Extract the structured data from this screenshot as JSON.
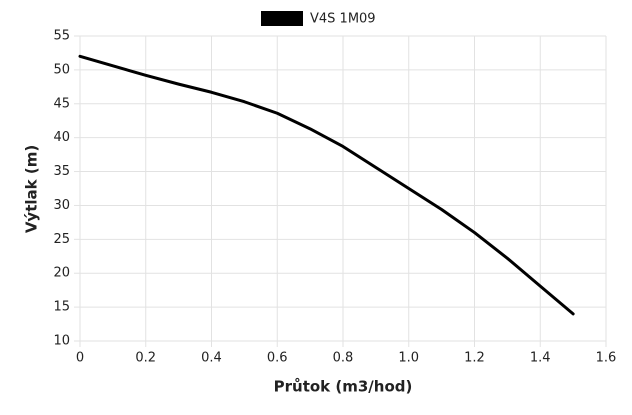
{
  "chart_data": {
    "type": "line",
    "x_label": "Průtok (m3/hod)",
    "y_label": "Výtlak (m)",
    "x": [
      0,
      0.1,
      0.2,
      0.3,
      0.4,
      0.5,
      0.6,
      0.7,
      0.8,
      0.9,
      1.0,
      1.1,
      1.2,
      1.3,
      1.4,
      1.5
    ],
    "series": [
      {
        "name": "V4S 1M09",
        "color": "#000000",
        "values": [
          52,
          50.6,
          49.2,
          47.9,
          46.7,
          45.3,
          43.6,
          41.3,
          38.7,
          35.6,
          32.5,
          29.4,
          26,
          22.2,
          18.1,
          14
        ]
      }
    ],
    "xlim": [
      0,
      1.6
    ],
    "xticks": [
      0,
      0.2,
      0.4,
      0.6,
      0.8,
      {
        "value": 1,
        "label": "1.0"
      },
      1.2,
      1.4,
      1.6
    ],
    "ylim": [
      10,
      55
    ],
    "yticks": [
      10,
      15,
      20,
      25,
      30,
      35,
      40,
      45,
      50,
      55
    ],
    "grid": true
  }
}
